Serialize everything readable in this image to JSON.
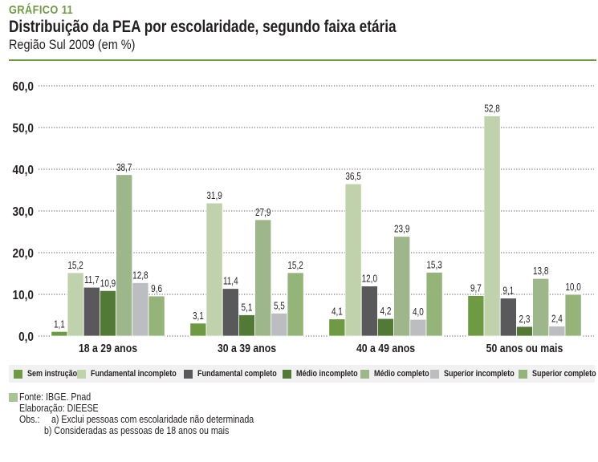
{
  "header": {
    "label": "GRÁFICO 11",
    "title": "Distribuição da PEA por escolaridade, segundo faixa etária",
    "subtitle": "Região Sul 2009 (em %)"
  },
  "colors": {
    "accent": "#6f9a44",
    "Sem instrução": "#6f9a44",
    "Fundamental incompleto": "#bfd2ab",
    "Fundamental completo": "#59595b",
    "Médio incompleto": "#527a36",
    "Médio completo": "#9db78a",
    "Superior incompleto": "#bcbdc1",
    "Superior completo": "#94b47a"
  },
  "chart_data": {
    "type": "bar",
    "title": "Distribuição da PEA por escolaridade, segundo faixa etária",
    "subtitle": "Região Sul 2009 (em %)",
    "xlabel": "",
    "ylabel": "",
    "ylim": [
      0,
      60
    ],
    "yticks": [
      "0,0",
      "10,0",
      "20,0",
      "30,0",
      "40,0",
      "50,0",
      "60,0"
    ],
    "ytick_values": [
      0,
      10,
      20,
      30,
      40,
      50,
      60
    ],
    "grid": true,
    "legend_position": "bottom",
    "categories": [
      "18 a 29 anos",
      "30 a 39 anos",
      "40 a 49 anos",
      "50 anos ou mais"
    ],
    "series": [
      {
        "name": "Sem instrução",
        "values": [
          1.1,
          3.1,
          4.1,
          9.7
        ],
        "labels": [
          "1,1",
          "3,1",
          "4,1",
          "9,7"
        ]
      },
      {
        "name": "Fundamental incompleto",
        "values": [
          15.2,
          31.9,
          36.5,
          52.8
        ],
        "labels": [
          "15,2",
          "31,9",
          "36,5",
          "52,8"
        ]
      },
      {
        "name": "Fundamental completo",
        "values": [
          11.7,
          11.4,
          12.0,
          9.1
        ],
        "labels": [
          "11,7",
          "11,4",
          "12,0",
          "9,1"
        ]
      },
      {
        "name": "Médio incompleto",
        "values": [
          10.9,
          5.1,
          4.2,
          2.3
        ],
        "labels": [
          "10,9",
          "5,1",
          "4,2",
          "2,3"
        ]
      },
      {
        "name": "Médio completo",
        "values": [
          38.7,
          27.9,
          23.9,
          13.8
        ],
        "labels": [
          "38,7",
          "27,9",
          "23,9",
          "13,8"
        ]
      },
      {
        "name": "Superior incompleto",
        "values": [
          12.8,
          5.5,
          4.0,
          2.4
        ],
        "labels": [
          "12,8",
          "5,5",
          "4,0",
          "2,4"
        ]
      },
      {
        "name": "Superior completo",
        "values": [
          9.6,
          15.2,
          15.3,
          10.0
        ],
        "labels": [
          "9,6",
          "15,2",
          "15,3",
          "10,0"
        ]
      }
    ]
  },
  "legend": [
    "Sem instrução",
    "Fundamental incompleto",
    "Fundamental completo",
    "Médio incompleto",
    "Médio completo",
    "Superior incompleto",
    "Superior completo"
  ],
  "notes": {
    "source": "Fonte: IBGE. Pnad",
    "elaboration": "Elaboração: DIEESE",
    "obs_label": "Obs.:",
    "obs_a": "a) Exclui pessoas com escolaridade não determinada",
    "obs_b": "b) Consideradas as pessoas de 18 anos ou mais"
  }
}
